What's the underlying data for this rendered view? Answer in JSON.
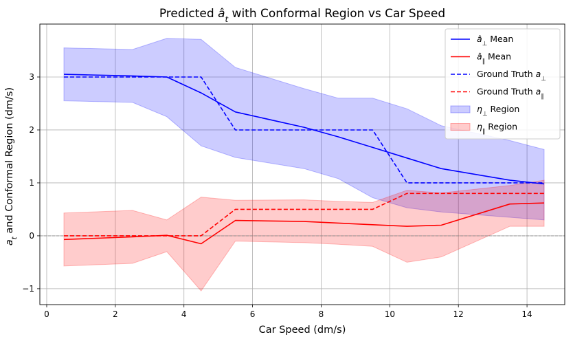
{
  "chart_data": {
    "type": "line",
    "title": "Predicted â_t with Conformal Region vs Car Speed",
    "title_parts": {
      "prefix": "Predicted ",
      "symbol": "a",
      "hat": "^",
      "sub": "t",
      "suffix": " with Conformal Region vs Car Speed"
    },
    "xlabel": "Car Speed (dm/s)",
    "ylabel": "a_t and Conformal Region (dm/s)",
    "ylabel_parts": {
      "symbol": "a",
      "sub": "t",
      "suffix": " and Conformal Region (dm/s)"
    },
    "xlim": [
      -0.2,
      15.1
    ],
    "ylim": [
      -1.3,
      4.0
    ],
    "xticks": [
      0,
      2,
      4,
      6,
      8,
      10,
      12,
      14
    ],
    "yticks": [
      -1,
      0,
      1,
      2,
      3
    ],
    "grid": true,
    "zero_line": true,
    "legend_position": "top-right",
    "x": [
      0.5,
      2.5,
      3.5,
      4.5,
      5.5,
      7.5,
      8.5,
      9.5,
      10.5,
      11.5,
      13.5,
      14.5
    ],
    "series": [
      {
        "name": "â⊥ Mean",
        "legend": {
          "symbol": "a",
          "hat": true,
          "sub": "⊥",
          "suffix": " Mean"
        },
        "color": "#0000ff",
        "style": "solid",
        "values": [
          3.05,
          3.02,
          3.0,
          2.7,
          2.34,
          2.05,
          1.87,
          1.67,
          1.47,
          1.27,
          1.05,
          0.98
        ]
      },
      {
        "name": "â∥ Mean",
        "legend": {
          "symbol": "a",
          "hat": true,
          "sub": "∥",
          "suffix": " Mean"
        },
        "color": "#ff0000",
        "style": "solid",
        "values": [
          -0.07,
          -0.02,
          0.01,
          -0.15,
          0.29,
          0.27,
          0.24,
          0.21,
          0.18,
          0.2,
          0.6,
          0.62
        ]
      },
      {
        "name": "Ground Truth a⊥",
        "legend": {
          "prefix": "Ground Truth ",
          "symbol": "a",
          "hat": false,
          "sub": "⊥"
        },
        "color": "#0000ff",
        "style": "dashed",
        "values": [
          3.0,
          3.0,
          3.0,
          3.0,
          2.0,
          2.0,
          2.0,
          2.0,
          1.0,
          1.0,
          1.0,
          1.0
        ]
      },
      {
        "name": "Ground Truth a∥",
        "legend": {
          "prefix": "Ground Truth ",
          "symbol": "a",
          "hat": false,
          "sub": "∥"
        },
        "color": "#ff0000",
        "style": "dashed",
        "values": [
          0.0,
          0.0,
          0.0,
          0.0,
          0.5,
          0.5,
          0.5,
          0.5,
          0.8,
          0.8,
          0.8,
          0.8
        ]
      }
    ],
    "regions": [
      {
        "name": "η⊥ Region",
        "legend": {
          "symbol": "η",
          "sub": "⊥",
          "suffix": " Region"
        },
        "color": "#0000ff",
        "opacity": 0.2,
        "lower": [
          2.55,
          2.52,
          2.25,
          1.7,
          1.48,
          1.27,
          1.08,
          0.72,
          0.53,
          0.45,
          0.35,
          0.3
        ],
        "upper": [
          3.55,
          3.52,
          3.73,
          3.71,
          3.18,
          2.78,
          2.6,
          2.6,
          2.4,
          2.08,
          1.8,
          1.63
        ]
      },
      {
        "name": "η∥ Region",
        "legend": {
          "symbol": "η",
          "sub": "∥",
          "suffix": " Region"
        },
        "color": "#ff0000",
        "opacity": 0.2,
        "lower": [
          -0.57,
          -0.52,
          -0.3,
          -1.04,
          -0.1,
          -0.13,
          -0.16,
          -0.2,
          -0.5,
          -0.4,
          0.18,
          0.18
        ],
        "upper": [
          0.43,
          0.48,
          0.3,
          0.73,
          0.67,
          0.68,
          0.65,
          0.63,
          0.86,
          0.81,
          0.95,
          1.05
        ]
      }
    ]
  }
}
